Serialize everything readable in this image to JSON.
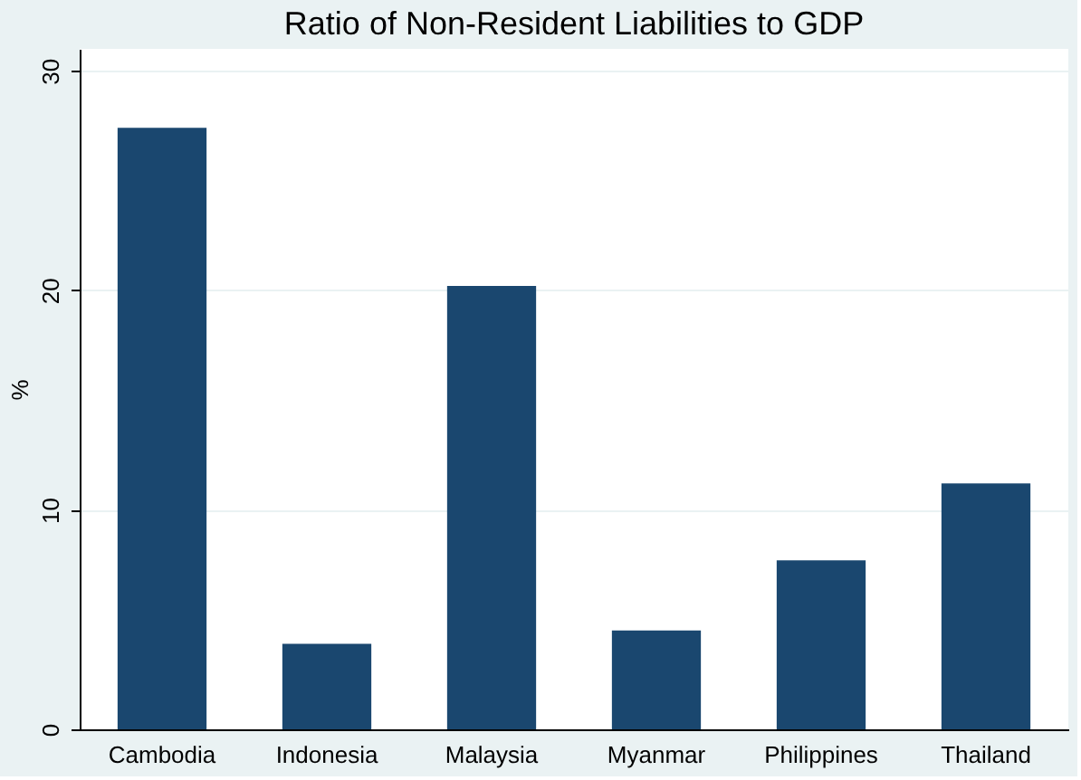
{
  "chart_data": {
    "type": "bar",
    "title": "Ratio of Non-Resident Liabilities to GDP",
    "ylabel": "%",
    "categories": [
      "Cambodia",
      "Indonesia",
      "Malaysia",
      "Myanmar",
      "Philippines",
      "Thailand"
    ],
    "values": [
      27.4,
      3.9,
      20.2,
      4.5,
      7.7,
      11.2
    ],
    "color": "#1a476f",
    "ylim": [
      0,
      31
    ],
    "yticks": [
      0,
      10,
      20,
      30
    ],
    "grid": "y"
  }
}
